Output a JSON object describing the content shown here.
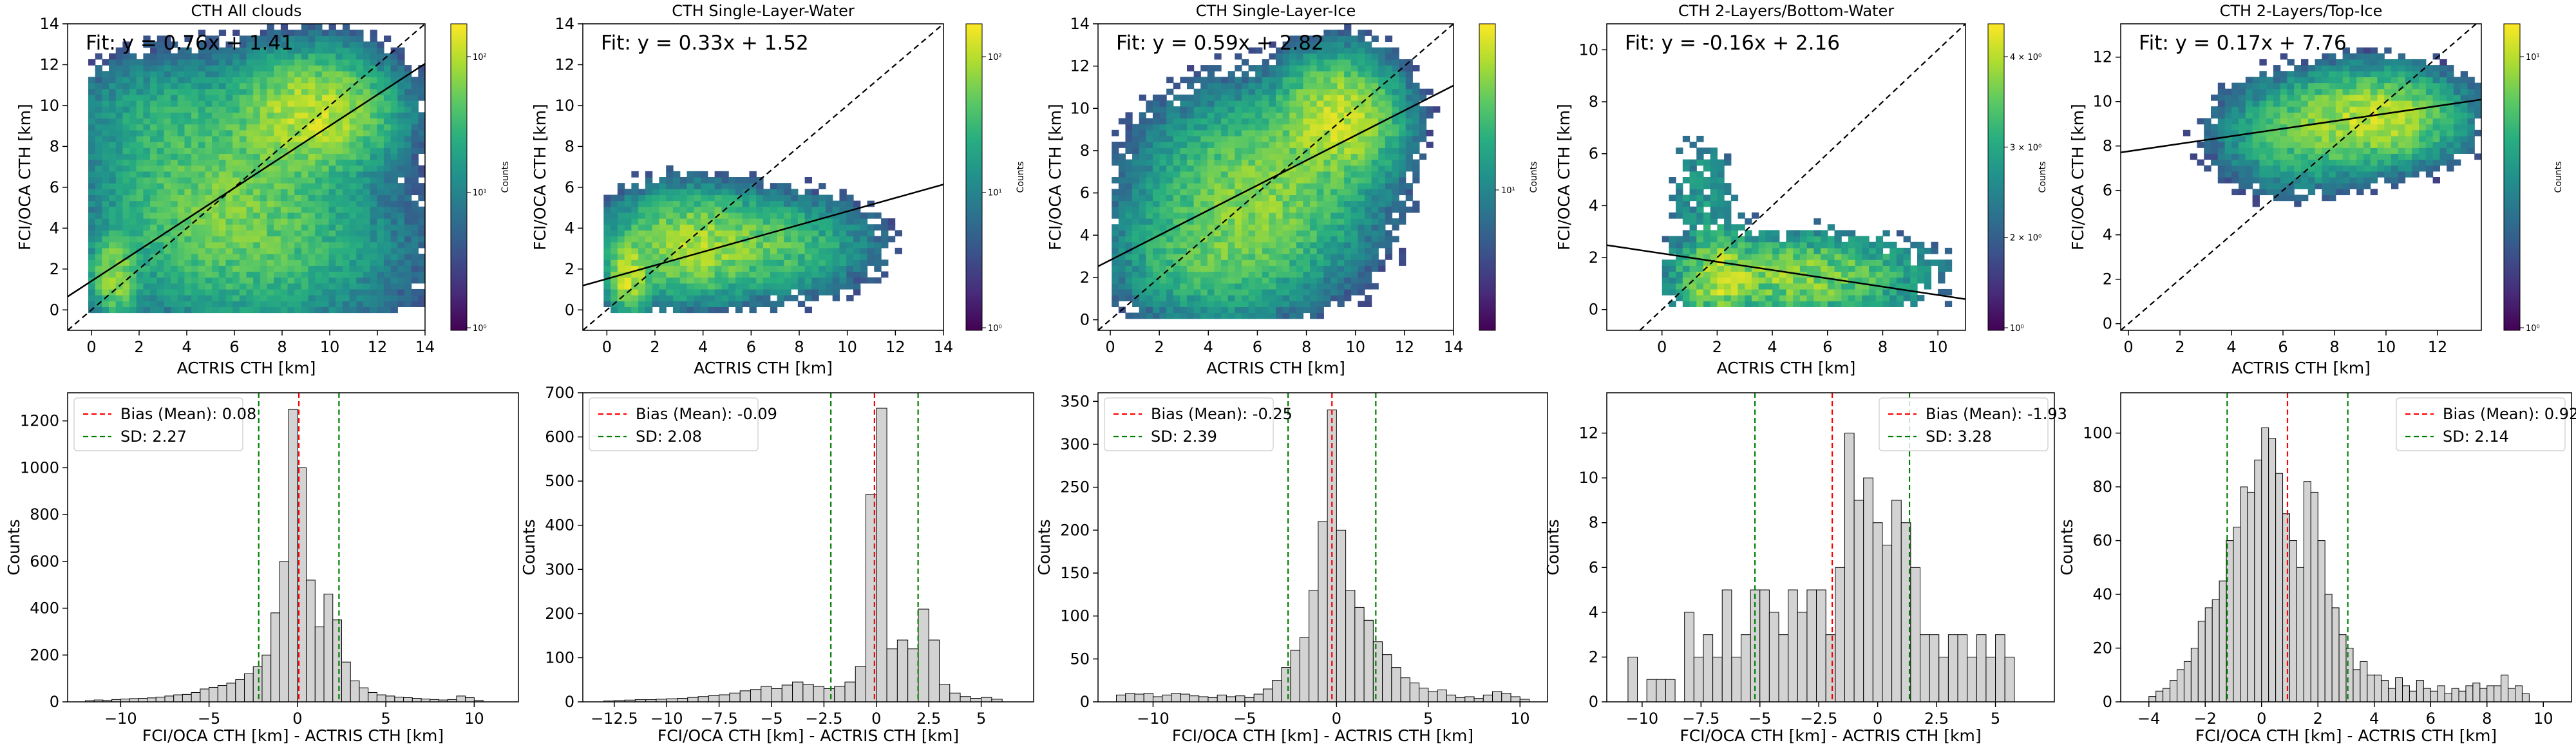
{
  "chart_data": [
    {
      "type": "heatmap",
      "title": "CTH All clouds",
      "xlabel": "ACTRIS CTH [km]",
      "ylabel": "FCI/OCA CTH [km]",
      "xlim": [
        -1,
        14
      ],
      "ylim": [
        -1,
        14
      ],
      "xticks": [
        0,
        2,
        4,
        6,
        8,
        10,
        12,
        14
      ],
      "yticks": [
        0,
        2,
        4,
        6,
        8,
        10,
        12,
        14
      ],
      "annotation": "Fit: y = 0.76x + 1.41",
      "fit": {
        "slope": 0.76,
        "intercept": 1.41
      },
      "colorbar": {
        "label": "Counts",
        "scale": "log",
        "ticks": [
          "10⁰",
          "10¹",
          "10²"
        ]
      },
      "clusters": [
        {
          "x": 9.3,
          "y": 9.6,
          "sx": 1.6,
          "sy": 1.4,
          "n": 620
        },
        {
          "x": 1.0,
          "y": 1.7,
          "sx": 0.5,
          "sy": 1.0,
          "n": 380
        },
        {
          "x": 5.5,
          "y": 5.5,
          "sx": 2.5,
          "sy": 2.5,
          "n": 230
        },
        {
          "x": 7.5,
          "y": 3.0,
          "sx": 3.0,
          "sy": 2.0,
          "n": 90
        },
        {
          "x": 3.0,
          "y": 9.5,
          "sx": 2.0,
          "sy": 1.5,
          "n": 60
        }
      ],
      "grid": false
    },
    {
      "type": "heatmap",
      "title": "CTH Single-Layer-Water",
      "xlabel": "ACTRIS CTH [km]",
      "ylabel": "FCI/OCA CTH [km]",
      "xlim": [
        -1,
        14
      ],
      "ylim": [
        -1,
        14
      ],
      "xticks": [
        0,
        2,
        4,
        6,
        8,
        10,
        12,
        14
      ],
      "yticks": [
        0,
        2,
        4,
        6,
        8,
        10,
        12,
        14
      ],
      "annotation": "Fit: y = 0.33x + 1.52",
      "fit": {
        "slope": 0.33,
        "intercept": 1.52
      },
      "colorbar": {
        "label": "Counts",
        "scale": "log",
        "ticks": [
          "10⁰",
          "10¹",
          "10²"
        ]
      },
      "clusters": [
        {
          "x": 0.9,
          "y": 1.6,
          "sx": 0.4,
          "sy": 0.8,
          "n": 320
        },
        {
          "x": 3.5,
          "y": 3.2,
          "sx": 1.7,
          "sy": 1.3,
          "n": 200
        },
        {
          "x": 7.0,
          "y": 3.2,
          "sx": 2.0,
          "sy": 1.2,
          "n": 80
        }
      ],
      "grid": false
    },
    {
      "type": "heatmap",
      "title": "CTH Single-Layer-Ice",
      "xlabel": "ACTRIS CTH [km]",
      "ylabel": "FCI/OCA CTH [km]",
      "xlim": [
        -0.5,
        14
      ],
      "ylim": [
        -0.5,
        14
      ],
      "xticks": [
        0,
        2,
        4,
        6,
        8,
        10,
        12,
        14
      ],
      "yticks": [
        0,
        2,
        4,
        6,
        8,
        10,
        12,
        14
      ],
      "annotation": "Fit: y = 0.59x + 2.82",
      "fit": {
        "slope": 0.59,
        "intercept": 2.82
      },
      "colorbar": {
        "label": "Counts",
        "scale": "log",
        "ticks": [
          "10¹"
        ]
      },
      "clusters": [
        {
          "x": 9.3,
          "y": 9.5,
          "sx": 1.2,
          "sy": 1.4,
          "n": 450
        },
        {
          "x": 6.0,
          "y": 6.0,
          "sx": 2.2,
          "sy": 2.2,
          "n": 220
        },
        {
          "x": 4.0,
          "y": 3.0,
          "sx": 2.0,
          "sy": 1.5,
          "n": 100
        }
      ],
      "grid": false
    },
    {
      "type": "heatmap",
      "title": "CTH 2-Layers/Bottom-Water",
      "xlabel": "ACTRIS CTH [km]",
      "ylabel": "FCI/OCA CTH [km]",
      "xlim": [
        -2,
        11
      ],
      "ylim": [
        -0.8,
        11
      ],
      "xticks": [
        0,
        2,
        4,
        6,
        8,
        10
      ],
      "yticks": [
        0,
        2,
        4,
        6,
        8,
        10
      ],
      "annotation": "Fit: y = -0.16x + 2.16",
      "fit": {
        "slope": -0.16,
        "intercept": 2.16
      },
      "colorbar": {
        "label": "Counts",
        "scale": "log",
        "ticks": [
          "10⁰",
          "2 × 10⁰",
          "3 × 10⁰",
          "4 × 10⁰"
        ]
      },
      "clusters": [
        {
          "x": 2.0,
          "y": 1.2,
          "sx": 0.7,
          "sy": 0.9,
          "n": 40
        },
        {
          "x": 5.0,
          "y": 1.3,
          "sx": 2.5,
          "sy": 0.9,
          "n": 40
        },
        {
          "x": 1.5,
          "y": 4.5,
          "sx": 0.8,
          "sy": 1.5,
          "n": 10
        }
      ],
      "grid": false
    },
    {
      "type": "heatmap",
      "title": "CTH 2-Layers/Top-Ice",
      "xlabel": "ACTRIS CTH [km]",
      "ylabel": "FCI/OCA CTH [km]",
      "xlim": [
        -0.3,
        13.7
      ],
      "ylim": [
        -0.3,
        13.5
      ],
      "xticks": [
        0,
        2,
        4,
        6,
        8,
        10,
        12
      ],
      "yticks": [
        0,
        2,
        4,
        6,
        8,
        10,
        12
      ],
      "annotation": "Fit: y = 0.17x + 7.76",
      "fit": {
        "slope": 0.17,
        "intercept": 7.76
      },
      "colorbar": {
        "label": "Counts",
        "scale": "log",
        "ticks": [
          "10⁰",
          "10¹"
        ]
      },
      "clusters": [
        {
          "x": 9.5,
          "y": 9.3,
          "sx": 1.6,
          "sy": 1.0,
          "n": 320
        },
        {
          "x": 6.5,
          "y": 8.5,
          "sx": 1.5,
          "sy": 1.2,
          "n": 90
        }
      ],
      "grid": false
    },
    {
      "type": "bar",
      "subtype": "histogram",
      "xlabel": "FCI/OCA CTH [km] - ACTRIS CTH [km]",
      "ylabel": "Counts",
      "xlim": [
        -13,
        12.5
      ],
      "ylim": [
        0,
        1320
      ],
      "xticks": [
        -10,
        -5,
        0,
        5,
        10
      ],
      "yticks": [
        0,
        200,
        400,
        600,
        800,
        1000,
        1200
      ],
      "bin_width": 0.5,
      "bin_centers": [
        -11.75,
        -11.25,
        -10.75,
        -10.25,
        -9.75,
        -9.25,
        -8.75,
        -8.25,
        -7.75,
        -7.25,
        -6.75,
        -6.25,
        -5.75,
        -5.25,
        -4.75,
        -4.25,
        -3.75,
        -3.25,
        -2.75,
        -2.25,
        -1.75,
        -1.25,
        -0.75,
        -0.25,
        0.25,
        0.75,
        1.25,
        1.75,
        2.25,
        2.75,
        3.25,
        3.75,
        4.25,
        4.75,
        5.25,
        5.75,
        6.25,
        6.75,
        7.25,
        7.75,
        8.25,
        8.75,
        9.25,
        9.75,
        10.25
      ],
      "values": [
        5,
        8,
        6,
        10,
        12,
        14,
        15,
        17,
        20,
        25,
        30,
        32,
        40,
        55,
        62,
        70,
        80,
        95,
        120,
        150,
        200,
        380,
        600,
        1250,
        1000,
        520,
        320,
        460,
        350,
        170,
        90,
        60,
        40,
        30,
        25,
        20,
        18,
        15,
        12,
        10,
        8,
        10,
        25,
        18,
        6
      ],
      "bias": {
        "value": 0.08,
        "label": "Bias (Mean): 0.08"
      },
      "sd": {
        "value": 2.27,
        "label": "SD: 2.27"
      },
      "legend": "top-left"
    },
    {
      "type": "bar",
      "subtype": "histogram",
      "xlabel": "FCI/OCA CTH [km] - ACTRIS CTH [km]",
      "ylabel": "Counts",
      "xlim": [
        -14,
        7.5
      ],
      "ylim": [
        0,
        700
      ],
      "xticks": [
        -12.5,
        -10.0,
        -7.5,
        -5.0,
        -2.5,
        0.0,
        2.5,
        5.0
      ],
      "yticks": [
        0,
        100,
        200,
        300,
        400,
        500,
        600,
        700
      ],
      "bin_width": 0.5,
      "bin_centers": [
        -12.75,
        -12.25,
        -11.75,
        -11.25,
        -10.75,
        -10.25,
        -9.75,
        -9.25,
        -8.75,
        -8.25,
        -7.75,
        -7.25,
        -6.75,
        -6.25,
        -5.75,
        -5.25,
        -4.75,
        -4.25,
        -3.75,
        -3.25,
        -2.75,
        -2.25,
        -1.75,
        -1.25,
        -0.75,
        -0.25,
        0.25,
        0.75,
        1.25,
        1.75,
        2.25,
        2.75,
        3.25,
        3.75,
        4.25,
        4.75,
        5.25,
        5.75
      ],
      "values": [
        2,
        3,
        4,
        5,
        5,
        6,
        7,
        8,
        10,
        12,
        14,
        16,
        20,
        25,
        28,
        35,
        30,
        38,
        45,
        40,
        35,
        30,
        35,
        45,
        80,
        470,
        665,
        120,
        140,
        120,
        210,
        140,
        40,
        20,
        12,
        8,
        10,
        6
      ],
      "bias": {
        "value": -0.09,
        "label": "Bias (Mean): -0.09"
      },
      "sd": {
        "value": 2.08,
        "label": "SD: 2.08"
      },
      "legend": "top-left"
    },
    {
      "type": "bar",
      "subtype": "histogram",
      "xlabel": "FCI/OCA CTH [km] - ACTRIS CTH [km]",
      "ylabel": "Counts",
      "xlim": [
        -13,
        11.5
      ],
      "ylim": [
        0,
        360
      ],
      "xticks": [
        -10,
        -5,
        0,
        5,
        10
      ],
      "yticks": [
        0,
        50,
        100,
        150,
        200,
        250,
        300,
        350
      ],
      "bin_width": 0.5,
      "bin_centers": [
        -11.75,
        -11.25,
        -10.75,
        -10.25,
        -9.75,
        -9.25,
        -8.75,
        -8.25,
        -7.75,
        -7.25,
        -6.75,
        -6.25,
        -5.75,
        -5.25,
        -4.75,
        -4.25,
        -3.75,
        -3.25,
        -2.75,
        -2.25,
        -1.75,
        -1.25,
        -0.75,
        -0.25,
        0.25,
        0.75,
        1.25,
        1.75,
        2.25,
        2.75,
        3.25,
        3.75,
        4.25,
        4.75,
        5.25,
        5.75,
        6.25,
        6.75,
        7.25,
        7.75,
        8.25,
        8.75,
        9.25,
        9.75,
        10.25
      ],
      "values": [
        8,
        10,
        9,
        10,
        6,
        8,
        10,
        9,
        7,
        6,
        5,
        8,
        6,
        7,
        5,
        9,
        15,
        25,
        40,
        60,
        75,
        130,
        210,
        340,
        200,
        130,
        110,
        95,
        70,
        55,
        40,
        28,
        22,
        16,
        12,
        14,
        8,
        5,
        6,
        4,
        8,
        12,
        10,
        6,
        3
      ],
      "bias": {
        "value": -0.25,
        "label": "Bias (Mean): -0.25"
      },
      "sd": {
        "value": 2.39,
        "label": "SD: 2.39"
      },
      "legend": "top-left"
    },
    {
      "type": "bar",
      "subtype": "histogram",
      "xlabel": "FCI/OCA CTH [km] - ACTRIS CTH [km]",
      "ylabel": "Counts",
      "xlim": [
        -11.5,
        7.5
      ],
      "ylim": [
        0,
        13.8
      ],
      "xticks": [
        -10.0,
        -7.5,
        -5.0,
        -2.5,
        0.0,
        2.5,
        5.0
      ],
      "yticks": [
        0,
        2,
        4,
        6,
        8,
        10,
        12
      ],
      "bin_width": 0.4,
      "bin_centers": [
        -10.4,
        -10.0,
        -9.6,
        -9.2,
        -8.8,
        -8.4,
        -8.0,
        -7.6,
        -7.2,
        -6.8,
        -6.4,
        -6.0,
        -5.6,
        -5.2,
        -4.8,
        -4.4,
        -4.0,
        -3.6,
        -3.2,
        -2.8,
        -2.4,
        -2.0,
        -1.6,
        -1.2,
        -0.8,
        -0.4,
        0.0,
        0.4,
        0.8,
        1.2,
        1.6,
        2.0,
        2.4,
        2.8,
        3.2,
        3.6,
        4.0,
        4.4,
        4.8,
        5.2,
        5.6
      ],
      "values": [
        2,
        0,
        1,
        1,
        1,
        0,
        4,
        2,
        3,
        2,
        5,
        2,
        3,
        5,
        5,
        4,
        3,
        5,
        4,
        5,
        5,
        3,
        6,
        12,
        9,
        10,
        8,
        7,
        9,
        8,
        6,
        3,
        3,
        2,
        3,
        3,
        2,
        3,
        2,
        3,
        2
      ],
      "bias": {
        "value": -1.93,
        "label": "Bias (Mean): -1.93"
      },
      "sd": {
        "value": 3.28,
        "label": "SD: 3.28"
      },
      "legend": "top-right"
    },
    {
      "type": "bar",
      "subtype": "histogram",
      "xlabel": "FCI/OCA CTH [km] - ACTRIS CTH [km]",
      "ylabel": "Counts",
      "xlim": [
        -5,
        11
      ],
      "ylim": [
        0,
        115
      ],
      "xticks": [
        -4,
        -2,
        0,
        2,
        4,
        6,
        8,
        10
      ],
      "yticks": [
        0,
        20,
        40,
        60,
        80,
        100
      ],
      "bin_width": 0.25,
      "bin_centers": [
        -3.875,
        -3.625,
        -3.375,
        -3.125,
        -2.875,
        -2.625,
        -2.375,
        -2.125,
        -1.875,
        -1.625,
        -1.375,
        -1.125,
        -0.875,
        -0.625,
        -0.375,
        -0.125,
        0.125,
        0.375,
        0.625,
        0.875,
        1.125,
        1.375,
        1.625,
        1.875,
        2.125,
        2.375,
        2.625,
        2.875,
        3.125,
        3.375,
        3.625,
        3.875,
        4.125,
        4.375,
        4.625,
        4.875,
        5.125,
        5.375,
        5.625,
        5.875,
        6.125,
        6.375,
        6.625,
        6.875,
        7.125,
        7.375,
        7.625,
        7.875,
        8.125,
        8.375,
        8.625,
        8.875,
        9.125,
        9.375
      ],
      "values": [
        2,
        4,
        5,
        8,
        12,
        15,
        20,
        30,
        35,
        38,
        45,
        60,
        65,
        80,
        78,
        90,
        102,
        98,
        85,
        70,
        60,
        50,
        82,
        78,
        60,
        40,
        35,
        25,
        20,
        12,
        15,
        10,
        10,
        8,
        5,
        9,
        6,
        4,
        8,
        5,
        4,
        6,
        3,
        5,
        4,
        6,
        7,
        5,
        6,
        6,
        10,
        5,
        6,
        3
      ],
      "bias": {
        "value": 0.92,
        "label": "Bias (Mean): 0.92"
      },
      "sd": {
        "value": 2.14,
        "label": "SD: 2.14"
      },
      "legend": "top-right"
    }
  ]
}
